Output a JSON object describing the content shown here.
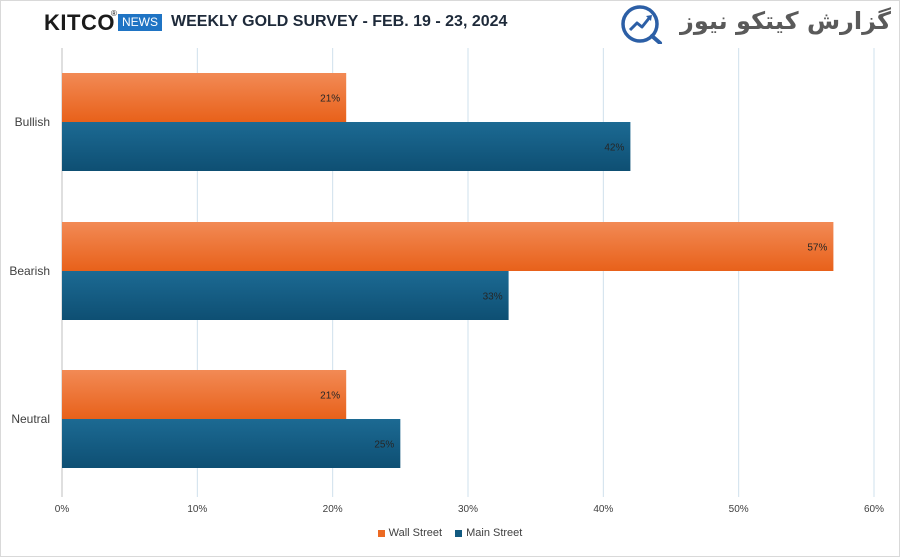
{
  "header": {
    "brand": "KITCO",
    "registered": "®",
    "news_badge": "NEWS",
    "title": "WEEKLY GOLD SURVEY - FEB. 19 - 23, 2024",
    "watermark": "گزارش کیتکو نیوز"
  },
  "colors": {
    "wall_street": "#ec6a23",
    "main_street": "#125a80",
    "grid": "#cfe0ec",
    "accent_logo": "#2c5fa6"
  },
  "chart_data": {
    "type": "bar",
    "orientation": "horizontal",
    "categories": [
      "Bullish",
      "Bearish",
      "Neutral"
    ],
    "series": [
      {
        "name": "Wall Street",
        "values": [
          21,
          57,
          21
        ],
        "labels": [
          "21%",
          "57%",
          "21%"
        ]
      },
      {
        "name": "Main Street",
        "values": [
          42,
          33,
          25
        ],
        "labels": [
          "42%",
          "33%",
          "25%"
        ]
      }
    ],
    "xlim": [
      0,
      60
    ],
    "xticks": [
      "0%",
      "10%",
      "20%",
      "30%",
      "40%",
      "50%",
      "60%"
    ],
    "grid": true,
    "legend_position": "bottom"
  }
}
